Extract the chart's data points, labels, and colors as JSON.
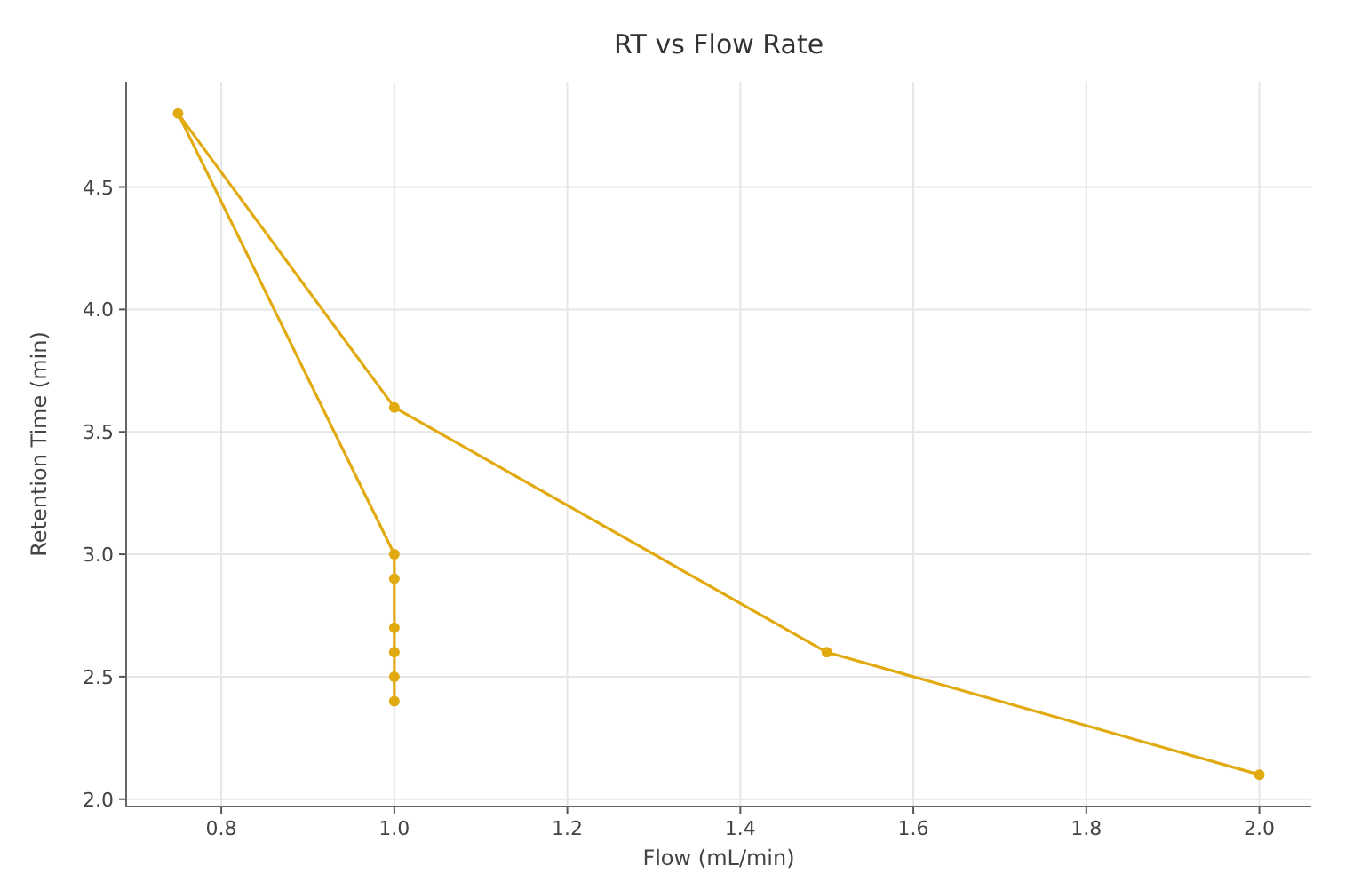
{
  "chart_data": {
    "type": "line",
    "title": "RT vs Flow Rate",
    "xlabel": "Flow (mL/min)",
    "ylabel": "Retention Time (min)",
    "series": [
      {
        "color": "#e0aa10",
        "x": [
          1.0,
          1.0,
          1.0,
          1.0,
          1.0,
          1.0,
          0.75,
          1.0,
          1.5,
          2.0
        ],
        "values": [
          2.4,
          2.5,
          2.6,
          2.7,
          2.9,
          3.0,
          4.8,
          3.6,
          2.6,
          2.1
        ]
      }
    ],
    "xlim": [
      0.69,
      2.06
    ],
    "xticks": [
      0.8,
      {
        "value": 1,
        "label": "1.0"
      },
      1.2,
      1.4,
      1.6,
      1.8,
      {
        "value": 2,
        "label": "2.0"
      }
    ],
    "ylim": [
      1.97,
      4.93
    ],
    "yticks": [
      {
        "value": 2,
        "label": "2.0"
      },
      2.5,
      {
        "value": 3,
        "label": "3.0"
      },
      3.5,
      {
        "value": 4,
        "label": "4.0"
      },
      4.5
    ],
    "grid": true,
    "marker": "circle",
    "line_style": "solid"
  }
}
